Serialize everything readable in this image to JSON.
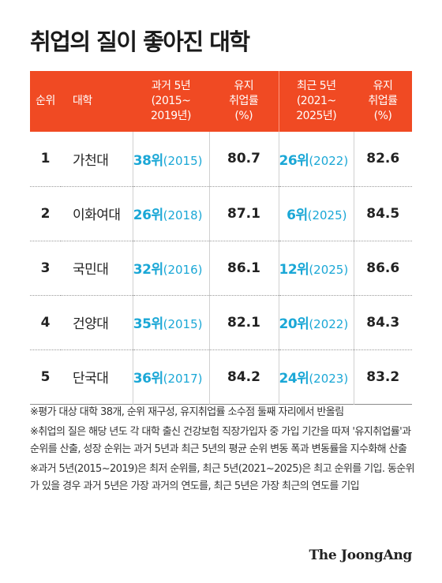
{
  "title": "취업의 질이 좋아진 대학",
  "header": {
    "rank": "순위",
    "university": "대학",
    "past_rank": [
      "과거 5년",
      "(2015~",
      "2019년)"
    ],
    "past_rate": [
      "유지",
      "취업률",
      "(%)"
    ],
    "recent_rank": [
      "최근 5년",
      "(2021~",
      "2025년)"
    ],
    "recent_rate": [
      "유지",
      "취업률",
      "(%)"
    ]
  },
  "rows": [
    {
      "rank": "1",
      "university": "가천대",
      "past_rank": "38위",
      "past_year": "(2015)",
      "past_rate": "80.7",
      "recent_rank": "26위",
      "recent_year": "(2022)",
      "recent_rate": "82.6"
    },
    {
      "rank": "2",
      "university": "이화여대",
      "past_rank": "26위",
      "past_year": "(2018)",
      "past_rate": "87.1",
      "recent_rank": "6위",
      "recent_year": "(2025)",
      "recent_rate": "84.5"
    },
    {
      "rank": "3",
      "university": "국민대",
      "past_rank": "32위",
      "past_year": "(2016)",
      "past_rate": "86.1",
      "recent_rank": "12위",
      "recent_year": "(2025)",
      "recent_rate": "86.6"
    },
    {
      "rank": "4",
      "university": "건양대",
      "past_rank": "35위",
      "past_year": "(2015)",
      "past_rate": "82.1",
      "recent_rank": "20위",
      "recent_year": "(2022)",
      "recent_rate": "84.3"
    },
    {
      "rank": "5",
      "university": "단국대",
      "past_rank": "36위",
      "past_year": "(2017)",
      "past_rate": "84.2",
      "recent_rank": "24위",
      "recent_year": "(2023)",
      "recent_rate": "83.2"
    }
  ],
  "notes": [
    "※평가 대상 대학 38개, 순위 재구성, 유지취업률 소수점 둘째 자리에서 반올림",
    "※취업의 질은 해당 년도 각 대학 출신 건강보험 직장가입자 중 가입 기간을 따져 '유지취업률'과 순위를 산출, 성장 순위는 과거 5년과 최근 5년의 평균 순위 변동 폭과 변동률을 지수화해 산출",
    "※과거 5년(2015~2019)은 최저 순위를, 최근 5년(2021~2025)은 최고 순위를 기입. 동순위가 있을 경우 과거 5년은 가장 과거의 연도를, 최근 5년은 가장 최근의 연도를 기입"
  ],
  "logo": "The JoongAng",
  "colors": {
    "header_bg": "#f04a23",
    "rank_accent": "#1aa7d6"
  }
}
